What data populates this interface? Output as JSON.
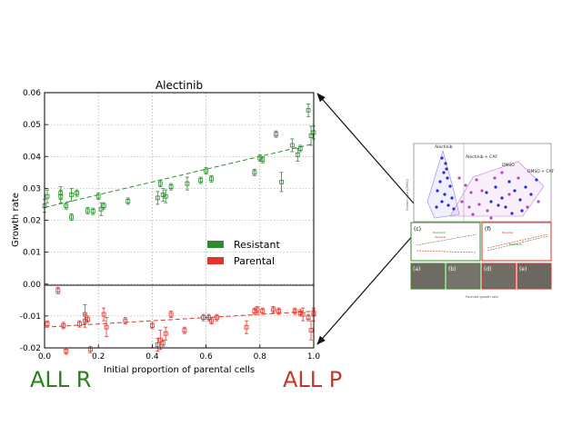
{
  "chart_data": {
    "type": "scatter",
    "title": "Alectinib",
    "xlabel": "Initial proportion of parental cells",
    "ylabel": "Growth rate",
    "xlim": [
      0.0,
      1.0
    ],
    "ylim": [
      -0.02,
      0.06
    ],
    "xticks": [
      "0.0",
      "0.2",
      "0.4",
      "0.6",
      "0.8",
      "1.0"
    ],
    "yticks": [
      "-0.02",
      "-0.01",
      "0.00",
      "0.01",
      "0.02",
      "0.03",
      "0.04",
      "0.05",
      "0.06"
    ],
    "grid": true,
    "legend_position": "center-right",
    "series": [
      {
        "name": "Resistant",
        "color": "#2e8b2e",
        "trend": {
          "x": [
            0.0,
            1.0
          ],
          "y": [
            0.024,
            0.044
          ]
        },
        "points": [
          {
            "x": 0.0,
            "y": 0.0245,
            "err": 0.002
          },
          {
            "x": 0.01,
            "y": 0.0275,
            "err": 0.002
          },
          {
            "x": 0.06,
            "y": 0.0285,
            "err": 0.002
          },
          {
            "x": 0.06,
            "y": 0.0275,
            "err": 0.002
          },
          {
            "x": 0.08,
            "y": 0.0245,
            "err": 0.001
          },
          {
            "x": 0.1,
            "y": 0.021,
            "err": 0.001
          },
          {
            "x": 0.1,
            "y": 0.028,
            "err": 0.002
          },
          {
            "x": 0.12,
            "y": 0.0285,
            "err": 0.001
          },
          {
            "x": 0.16,
            "y": 0.023,
            "err": 0.001
          },
          {
            "x": 0.18,
            "y": 0.0228,
            "err": 0.001
          },
          {
            "x": 0.2,
            "y": 0.0275,
            "err": 0.001
          },
          {
            "x": 0.21,
            "y": 0.0235,
            "err": 0.002
          },
          {
            "x": 0.22,
            "y": 0.0245,
            "err": 0.001
          },
          {
            "x": 0.31,
            "y": 0.026,
            "err": 0.001
          },
          {
            "x": 0.42,
            "y": 0.027,
            "err": 0.002
          },
          {
            "x": 0.43,
            "y": 0.0315,
            "err": 0.001
          },
          {
            "x": 0.44,
            "y": 0.028,
            "err": 0.002
          },
          {
            "x": 0.45,
            "y": 0.0275,
            "err": 0.002
          },
          {
            "x": 0.47,
            "y": 0.0305,
            "err": 0.001
          },
          {
            "x": 0.53,
            "y": 0.0315,
            "err": 0.002
          },
          {
            "x": 0.58,
            "y": 0.0325,
            "err": 0.001
          },
          {
            "x": 0.6,
            "y": 0.0355,
            "err": 0.001
          },
          {
            "x": 0.62,
            "y": 0.033,
            "err": 0.001
          },
          {
            "x": 0.78,
            "y": 0.035,
            "err": 0.001
          },
          {
            "x": 0.8,
            "y": 0.0395,
            "err": 0.001
          },
          {
            "x": 0.81,
            "y": 0.039,
            "err": 0.001
          },
          {
            "x": 0.86,
            "y": 0.047,
            "err": 0.001
          },
          {
            "x": 0.88,
            "y": 0.032,
            "err": 0.003
          },
          {
            "x": 0.92,
            "y": 0.0435,
            "err": 0.002
          },
          {
            "x": 0.94,
            "y": 0.0405,
            "err": 0.002
          },
          {
            "x": 0.95,
            "y": 0.0425,
            "err": 0.001
          },
          {
            "x": 0.98,
            "y": 0.0545,
            "err": 0.002
          },
          {
            "x": 0.99,
            "y": 0.0465,
            "err": 0.003
          },
          {
            "x": 1.0,
            "y": 0.0475,
            "err": 0.002
          }
        ]
      },
      {
        "name": "Parental",
        "color": "#e0352b",
        "trend": {
          "x": [
            0.0,
            1.0
          ],
          "y": [
            -0.0135,
            -0.0085
          ]
        },
        "points": [
          {
            "x": 0.01,
            "y": -0.0125,
            "err": 0.001
          },
          {
            "x": 0.05,
            "y": -0.002,
            "err": 0.001
          },
          {
            "x": 0.07,
            "y": -0.013,
            "err": 0.001
          },
          {
            "x": 0.08,
            "y": -0.021,
            "err": 0.001
          },
          {
            "x": 0.13,
            "y": -0.0125,
            "err": 0.001
          },
          {
            "x": 0.15,
            "y": -0.0095,
            "err": 0.003
          },
          {
            "x": 0.15,
            "y": -0.0115,
            "err": 0.002
          },
          {
            "x": 0.16,
            "y": -0.011,
            "err": 0.001
          },
          {
            "x": 0.17,
            "y": -0.0205,
            "err": 0.001
          },
          {
            "x": 0.22,
            "y": -0.0095,
            "err": 0.002
          },
          {
            "x": 0.23,
            "y": -0.0135,
            "err": 0.003
          },
          {
            "x": 0.3,
            "y": -0.0115,
            "err": 0.001
          },
          {
            "x": 0.4,
            "y": -0.013,
            "err": 0.001
          },
          {
            "x": 0.42,
            "y": -0.019,
            "err": 0.002
          },
          {
            "x": 0.43,
            "y": -0.0175,
            "err": 0.003
          },
          {
            "x": 0.44,
            "y": -0.0185,
            "err": 0.001
          },
          {
            "x": 0.45,
            "y": -0.0155,
            "err": 0.002
          },
          {
            "x": 0.47,
            "y": -0.0095,
            "err": 0.001
          },
          {
            "x": 0.52,
            "y": -0.0145,
            "err": 0.001
          },
          {
            "x": 0.59,
            "y": -0.0105,
            "err": 0.001
          },
          {
            "x": 0.61,
            "y": -0.0105,
            "err": 0.001
          },
          {
            "x": 0.62,
            "y": -0.0115,
            "err": 0.001
          },
          {
            "x": 0.64,
            "y": -0.0105,
            "err": 0.001
          },
          {
            "x": 0.75,
            "y": -0.0135,
            "err": 0.002
          },
          {
            "x": 0.78,
            "y": -0.0085,
            "err": 0.001
          },
          {
            "x": 0.79,
            "y": -0.008,
            "err": 0.001
          },
          {
            "x": 0.81,
            "y": -0.0085,
            "err": 0.001
          },
          {
            "x": 0.85,
            "y": -0.008,
            "err": 0.001
          },
          {
            "x": 0.87,
            "y": -0.0085,
            "err": 0.001
          },
          {
            "x": 0.93,
            "y": -0.0085,
            "err": 0.001
          },
          {
            "x": 0.95,
            "y": -0.009,
            "err": 0.001
          },
          {
            "x": 0.96,
            "y": -0.0095,
            "err": 0.002
          },
          {
            "x": 0.98,
            "y": -0.0105,
            "err": 0.001
          },
          {
            "x": 0.99,
            "y": -0.0145,
            "err": 0.003
          },
          {
            "x": 1.0,
            "y": -0.009,
            "err": 0.001
          },
          {
            "x": 1.0,
            "y": -0.0095,
            "err": 0.002
          }
        ]
      }
    ]
  },
  "end_labels": {
    "left": "ALL R",
    "right": "ALL P"
  },
  "inset": {
    "ylabel": "Growth rate (DMSO)",
    "xlabel": "Parental growth rate",
    "labels": [
      "Alectinib",
      "Alectinib + CAF",
      "DMSO",
      "DMSO + CAF"
    ],
    "panel_labels": [
      "(c)",
      "(f)",
      "(a)",
      "(b)",
      "(d)",
      "(e)"
    ],
    "subpanel_legend": [
      "Resistant",
      "Parental"
    ]
  }
}
